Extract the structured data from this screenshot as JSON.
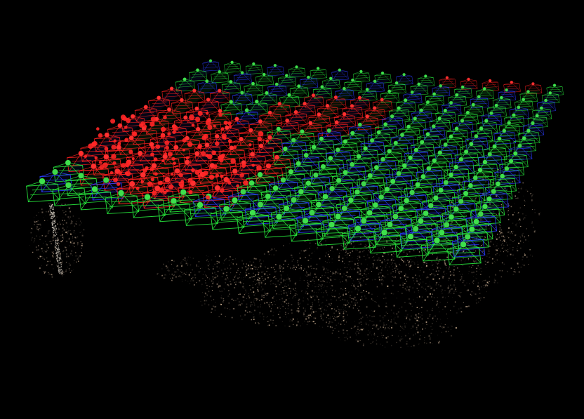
{
  "scene": {
    "subject": "sfm-camera-pose-reconstruction",
    "background_color": "#000000",
    "camera_colors": {
      "blue": "#2a3cff",
      "green": "#27e83c",
      "red": "#ff1f1f"
    },
    "terrain_colors": {
      "bright": "#c9ad8f",
      "mid": "#8a7766",
      "dark": "#3b342d"
    }
  }
}
